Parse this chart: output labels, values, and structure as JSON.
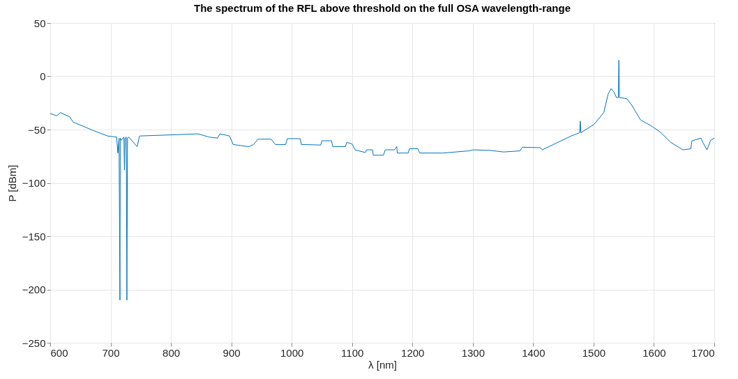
{
  "chart_data": {
    "type": "line",
    "title": "The spectrum of the RFL above threshold on the full OSA wavelength-range",
    "xlabel": "λ [nm]",
    "ylabel": "P [dBm]",
    "xlim": [
      600,
      1700
    ],
    "xticks": [
      600,
      700,
      800,
      900,
      1000,
      1100,
      1200,
      1300,
      1400,
      1500,
      1600,
      1700
    ],
    "ylim": [
      -250,
      50
    ],
    "yticks": [
      -250,
      -200,
      -150,
      -100,
      -50,
      0,
      50
    ],
    "grid": true,
    "series": [
      {
        "color": "#0072bd",
        "x": [
          600,
          611,
          617,
          632,
          638,
          672,
          695,
          710,
          712,
          714,
          715.5,
          716,
          718,
          722,
          723,
          724,
          726,
          727,
          728,
          730,
          744,
          748,
          799,
          845,
          863,
          877,
          881,
          897,
          903,
          929,
          937,
          944,
          966,
          973,
          990,
          993,
          1014,
          1016,
          1048,
          1050,
          1066,
          1068,
          1089,
          1091,
          1100,
          1105,
          1122,
          1124,
          1134,
          1135,
          1152,
          1155,
          1170,
          1174,
          1175,
          1193,
          1195,
          1209,
          1212,
          1250,
          1293,
          1301,
          1328,
          1351,
          1378,
          1382,
          1412,
          1415,
          1463,
          1477,
          1478,
          1479,
          1501,
          1517,
          1524,
          1529,
          1534,
          1538,
          1541,
          1542,
          1543,
          1555,
          1562,
          1578,
          1594,
          1611,
          1628,
          1648,
          1661,
          1663,
          1678,
          1681,
          1688,
          1694,
          1700
        ],
        "values": [
          -35,
          -37,
          -34,
          -38,
          -43,
          -51,
          -56,
          -57,
          -72,
          -58,
          -210,
          -58,
          -60,
          -57,
          -88,
          -58,
          -57,
          -210,
          -58,
          -57,
          -66,
          -56,
          -55,
          -54,
          -57,
          -58,
          -54,
          -56,
          -64,
          -66,
          -64,
          -59,
          -59,
          -64,
          -64,
          -58.5,
          -58.5,
          -64,
          -64.5,
          -60.5,
          -60.5,
          -66,
          -66,
          -62,
          -63.5,
          -69,
          -71.5,
          -69,
          -69,
          -74,
          -74,
          -69,
          -69,
          -66,
          -72,
          -72,
          -68,
          -68,
          -72,
          -72,
          -70,
          -69,
          -69.5,
          -71,
          -70,
          -66.5,
          -67,
          -69,
          -56,
          -53,
          -42,
          -53,
          -45,
          -34,
          -17,
          -11.5,
          -15,
          -20,
          -20,
          15,
          -20,
          -21,
          -26,
          -41,
          -46,
          -52.5,
          -62,
          -69,
          -68,
          -60.5,
          -58,
          -62,
          -69,
          -60,
          -58
        ]
      }
    ]
  }
}
